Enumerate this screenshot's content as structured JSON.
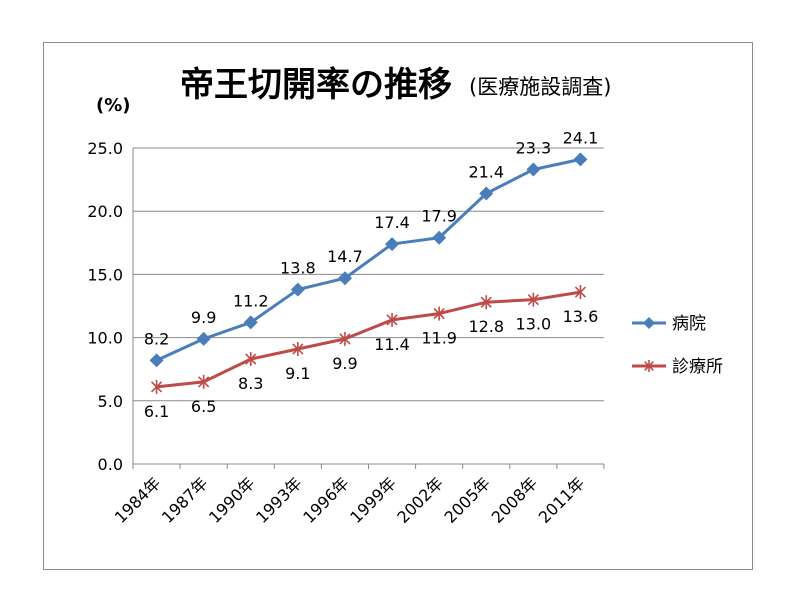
{
  "chart_data": {
    "type": "line",
    "title": "帝王切開率の推移",
    "subtitle": "(医療施設調査)",
    "ylabel": "(%)",
    "xlabel": "",
    "categories": [
      "1984年",
      "1987年",
      "1990年",
      "1993年",
      "1996年",
      "1999年",
      "2002年",
      "2005年",
      "2008年",
      "2011年"
    ],
    "ylim": [
      0,
      25
    ],
    "yticks": [
      "0.0",
      "5.0",
      "10.0",
      "15.0",
      "20.0",
      "25.0"
    ],
    "grid": true,
    "legend_position": "right",
    "series": [
      {
        "name": "病院",
        "color": "#4a7ebb",
        "marker": "diamond",
        "values": [
          8.2,
          9.9,
          11.2,
          13.8,
          14.7,
          17.4,
          17.9,
          21.4,
          23.3,
          24.1
        ],
        "labels": [
          "8.2",
          "9.9",
          "11.2",
          "13.8",
          "14.7",
          "17.4",
          "17.9",
          "21.4",
          "23.3",
          "24.1"
        ]
      },
      {
        "name": "診療所",
        "color": "#be4b48",
        "marker": "star",
        "values": [
          6.1,
          6.5,
          8.3,
          9.1,
          9.9,
          11.4,
          11.9,
          12.8,
          13.0,
          13.6
        ],
        "labels": [
          "6.1",
          "6.5",
          "8.3",
          "9.1",
          "9.9",
          "11.4",
          "11.9",
          "12.8",
          "13.0",
          "13.6"
        ]
      }
    ]
  }
}
